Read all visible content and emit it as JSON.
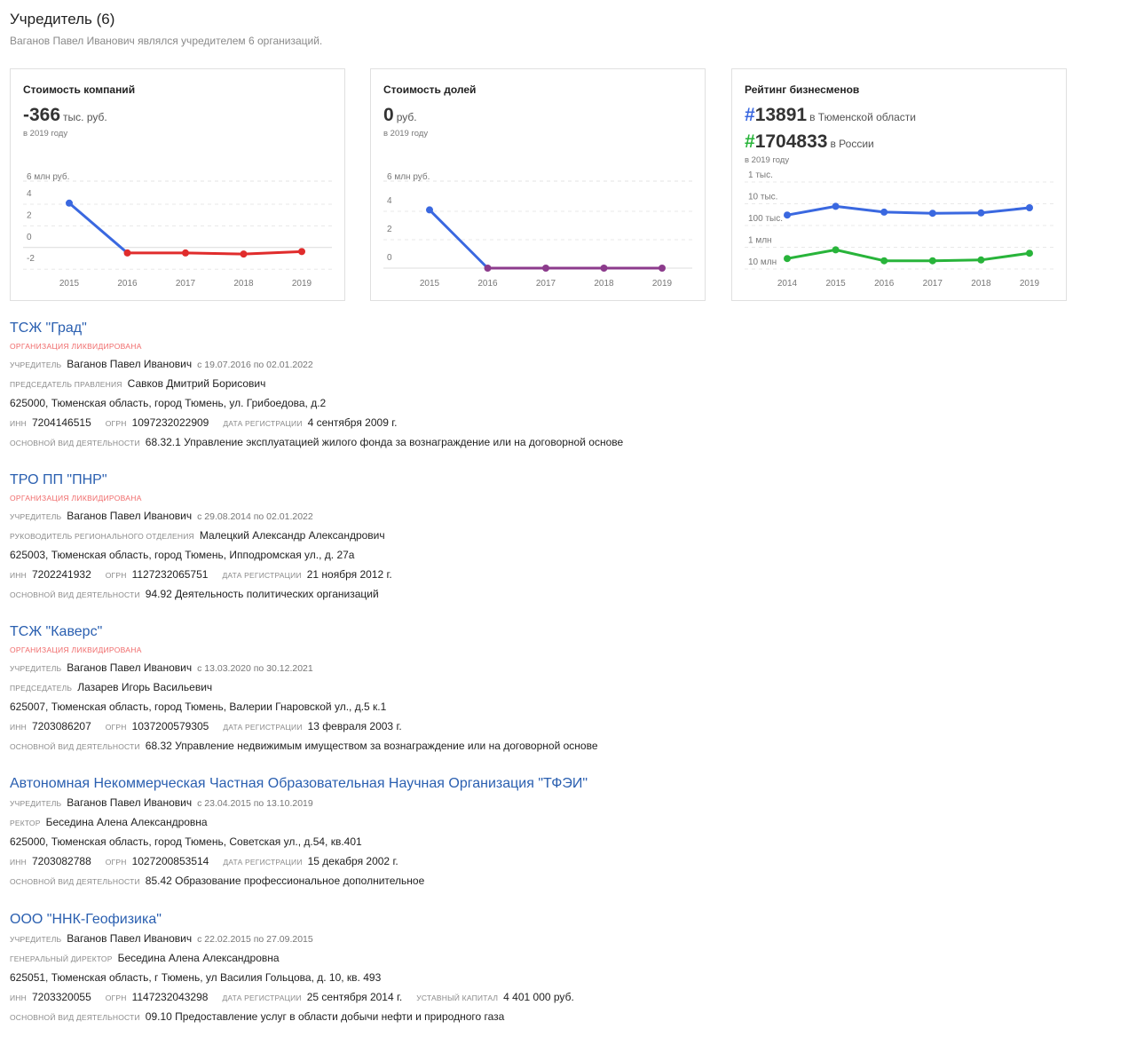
{
  "header": {
    "title": "Учредитель (6)",
    "subtitle": "Ваганов Павел Иванович являлся учредителем 6 организаций."
  },
  "cards": {
    "value": {
      "title": "Стоимость компаний",
      "number": "-366",
      "unit": "тыс. руб.",
      "note": "в 2019 году",
      "axis_top": "6 млн руб.",
      "y_ticks": [
        "4",
        "2",
        "0",
        "-2"
      ],
      "x_ticks": [
        "2015",
        "2016",
        "2017",
        "2018",
        "2019"
      ]
    },
    "shares": {
      "title": "Стоимость долей",
      "number": "0",
      "unit": "руб.",
      "note": "в 2019 году",
      "axis_top": "6 млн руб.",
      "y_ticks": [
        "4",
        "2",
        "0"
      ],
      "x_ticks": [
        "2015",
        "2016",
        "2017",
        "2018",
        "2019"
      ]
    },
    "rating": {
      "title": "Рейтинг бизнесменов",
      "region_rank": "#13891",
      "region_label": "в Тюменской области",
      "russia_rank": "#1704833",
      "russia_label": "в России",
      "note": "в 2019 году",
      "y_ticks": [
        "1 тыс.",
        "10 тыс.",
        "100 тыс.",
        "1 млн",
        "10 млн"
      ],
      "x_ticks": [
        "2014",
        "2015",
        "2016",
        "2017",
        "2018",
        "2019"
      ]
    }
  },
  "chart_data": [
    {
      "type": "line",
      "title": "Стоимость компаний",
      "ylabel": "6 млн руб.",
      "x": [
        "2015",
        "2016",
        "2017",
        "2018",
        "2019"
      ],
      "series": [
        {
          "name": "",
          "values": [
            4.1,
            -0.5,
            -0.5,
            -0.6,
            -0.37
          ]
        }
      ],
      "ylim": [
        -3,
        6
      ],
      "colors": {
        "rise": "#3a68e0",
        "fall": "#e02c2c"
      }
    },
    {
      "type": "line",
      "title": "Стоимость долей",
      "ylabel": "6 млн руб.",
      "x": [
        "2015",
        "2016",
        "2017",
        "2018",
        "2019"
      ],
      "series": [
        {
          "name": "",
          "values": [
            4.1,
            0,
            0,
            0,
            0
          ]
        }
      ],
      "ylim": [
        -0.5,
        6
      ],
      "colors": {
        "rise": "#3a68e0",
        "flat": "#8c3b8c"
      }
    },
    {
      "type": "line",
      "title": "Рейтинг бизнесменов",
      "scale": "log-inverted",
      "x": [
        "2014",
        "2015",
        "2016",
        "2017",
        "2018",
        "2019"
      ],
      "series": [
        {
          "name": "в Тюменской области",
          "values": [
            30000,
            12000,
            22000,
            25000,
            24000,
            13891
          ],
          "color": "#3a68e0"
        },
        {
          "name": "в России",
          "values": [
            3000000,
            1200000,
            3800000,
            3800000,
            3500000,
            1704833
          ],
          "color": "#28b43a"
        }
      ]
    }
  ],
  "orgs": [
    {
      "name": "ТСЖ \"Град\"",
      "status": "ОРГАНИЗАЦИЯ ЛИКВИДИРОВАНА",
      "founder_label": "учредитель",
      "founder": "Ваганов Павел Иванович",
      "founder_dates": "с 19.07.2016 по 02.01.2022",
      "head_label": "председатель правления",
      "head": "Савков Дмитрий Борисович",
      "address": "625000, Тюменская область, город Тюмень, ул. Грибоедова, д.2",
      "inn_label": "инн",
      "inn": "7204146515",
      "ogrn_label": "огрн",
      "ogrn": "1097232022909",
      "reg_label": "дата регистрации",
      "reg_date": "4 сентября 2009 г.",
      "activity_label": "основной вид деятельности",
      "activity": "68.32.1 Управление эксплуатацией жилого фонда за вознаграждение или на договорной основе"
    },
    {
      "name": "ТРО ПП \"ПНР\"",
      "status": "ОРГАНИЗАЦИЯ ЛИКВИДИРОВАНА",
      "founder_label": "учредитель",
      "founder": "Ваганов Павел Иванович",
      "founder_dates": "с 29.08.2014 по 02.01.2022",
      "head_label": "руководитель регионального отделения",
      "head": "Малецкий Александр Александрович",
      "address": "625003, Тюменская область, город Тюмень, Ипподромская ул., д. 27а",
      "inn_label": "инн",
      "inn": "7202241932",
      "ogrn_label": "огрн",
      "ogrn": "1127232065751",
      "reg_label": "дата регистрации",
      "reg_date": "21 ноября 2012 г.",
      "activity_label": "основной вид деятельности",
      "activity": "94.92 Деятельность политических организаций"
    },
    {
      "name": "ТСЖ \"Каверс\"",
      "status": "ОРГАНИЗАЦИЯ ЛИКВИДИРОВАНА",
      "founder_label": "учредитель",
      "founder": "Ваганов Павел Иванович",
      "founder_dates": "с 13.03.2020 по 30.12.2021",
      "head_label": "председатель",
      "head": "Лазарев Игорь Васильевич",
      "address": "625007, Тюменская область, город Тюмень, Валерии Гнаровской ул., д.5 к.1",
      "inn_label": "инн",
      "inn": "7203086207",
      "ogrn_label": "огрн",
      "ogrn": "1037200579305",
      "reg_label": "дата регистрации",
      "reg_date": "13 февраля 2003 г.",
      "activity_label": "основной вид деятельности",
      "activity": "68.32 Управление недвижимым имуществом за вознаграждение или на договорной основе"
    },
    {
      "name": "Автономная Некоммерческая Частная Образовательная Научная Организация \"ТФЭИ\"",
      "status": "",
      "founder_label": "учредитель",
      "founder": "Ваганов Павел Иванович",
      "founder_dates": "с 23.04.2015 по 13.10.2019",
      "head_label": "ректор",
      "head": "Беседина Алена Александровна",
      "address": "625000, Тюменская область, город Тюмень, Советская ул., д.54, кв.401",
      "inn_label": "инн",
      "inn": "7203082788",
      "ogrn_label": "огрн",
      "ogrn": "1027200853514",
      "reg_label": "дата регистрации",
      "reg_date": "15 декабря 2002 г.",
      "activity_label": "основной вид деятельности",
      "activity": "85.42 Образование профессиональное дополнительное"
    },
    {
      "name": "ООО \"ННК-Геофизика\"",
      "status": "",
      "founder_label": "учредитель",
      "founder": "Ваганов Павел Иванович",
      "founder_dates": "с 22.02.2015 по 27.09.2015",
      "head_label": "генеральный директор",
      "head": "Беседина Алена Александровна",
      "address": "625051, Тюменская область, г Тюмень, ул Василия Гольцова, д. 10, кв. 493",
      "inn_label": "инн",
      "inn": "7203320055",
      "ogrn_label": "огрн",
      "ogrn": "1147232043298",
      "reg_label": "дата регистрации",
      "reg_date": "25 сентября 2014 г.",
      "capital_label": "уставный капитал",
      "capital": "4 401 000 руб.",
      "activity_label": "основной вид деятельности",
      "activity": "09.10 Предоставление услуг в области добычи нефти и природного газа"
    }
  ]
}
